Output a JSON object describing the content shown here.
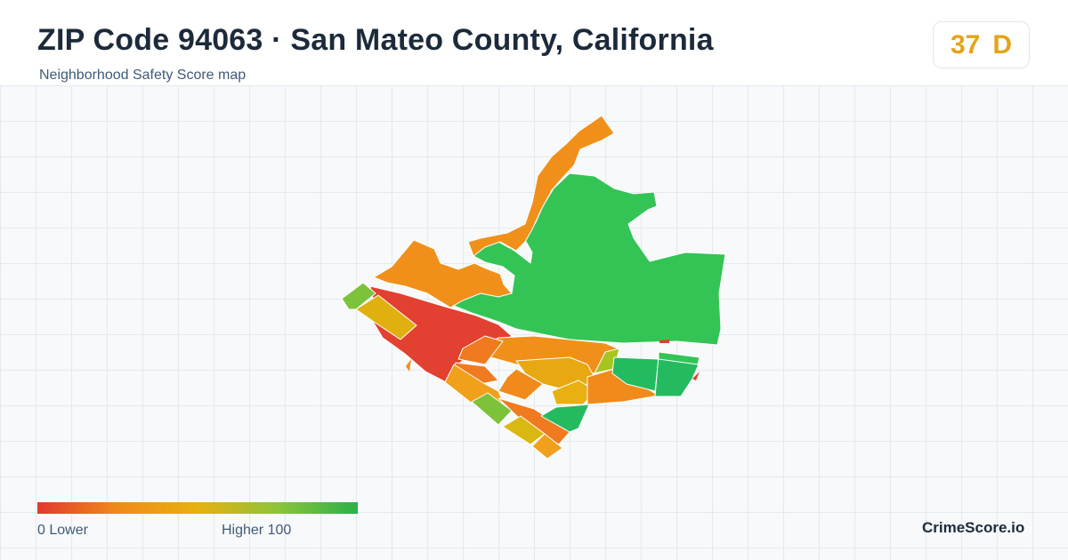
{
  "header": {
    "title": "ZIP Code 94063 · San Mateo County, California",
    "subtitle": "Neighborhood Safety Score map"
  },
  "score": {
    "value": "37",
    "grade": "D",
    "color": "#e3a31a"
  },
  "legend": {
    "low_label": "0  Lower",
    "high_label": "Higher  100",
    "gradient": [
      "#e03a2e",
      "#f08a1a",
      "#e8b010",
      "#8cc43a",
      "#2cb04a"
    ]
  },
  "brand": "CrimeScore.io",
  "colors": {
    "red": "#e04030",
    "orange": "#f0901a",
    "yellow": "#e0b010",
    "light_green": "#7cc23a",
    "green": "#34c456",
    "teal_green": "#20b866"
  }
}
